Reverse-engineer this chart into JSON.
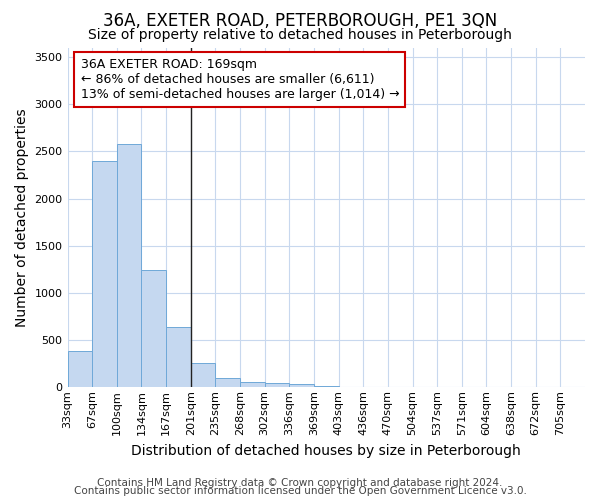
{
  "title": "36A, EXETER ROAD, PETERBOROUGH, PE1 3QN",
  "subtitle": "Size of property relative to detached houses in Peterborough",
  "xlabel": "Distribution of detached houses by size in Peterborough",
  "ylabel": "Number of detached properties",
  "footer1": "Contains HM Land Registry data © Crown copyright and database right 2024.",
  "footer2": "Contains public sector information licensed under the Open Government Licence v3.0.",
  "annotation_line1": "36A EXETER ROAD: 169sqm",
  "annotation_line2": "← 86% of detached houses are smaller (6,611)",
  "annotation_line3": "13% of semi-detached houses are larger (1,014) →",
  "bin_labels": [
    "33sqm",
    "67sqm",
    "100sqm",
    "134sqm",
    "167sqm",
    "201sqm",
    "235sqm",
    "268sqm",
    "302sqm",
    "336sqm",
    "369sqm",
    "403sqm",
    "436sqm",
    "470sqm",
    "504sqm",
    "537sqm",
    "571sqm",
    "604sqm",
    "638sqm",
    "672sqm",
    "705sqm"
  ],
  "bar_values": [
    390,
    2400,
    2580,
    1240,
    640,
    260,
    95,
    55,
    50,
    35,
    10,
    5,
    0,
    0,
    0,
    0,
    0,
    0,
    0,
    0,
    0
  ],
  "bar_color": "#c5d8f0",
  "bar_edge_color": "#6fa8d8",
  "vline_index": 4.5,
  "vline_color": "#222222",
  "ylim": [
    0,
    3600
  ],
  "yticks": [
    0,
    500,
    1000,
    1500,
    2000,
    2500,
    3000,
    3500
  ],
  "annotation_box_edgecolor": "#cc0000",
  "annotation_box_fill": "#ffffff",
  "background_color": "#ffffff",
  "grid_color": "#c8d8ee",
  "title_fontsize": 12,
  "subtitle_fontsize": 10,
  "axis_label_fontsize": 10,
  "tick_fontsize": 8,
  "annotation_fontsize": 9,
  "footer_fontsize": 7.5
}
